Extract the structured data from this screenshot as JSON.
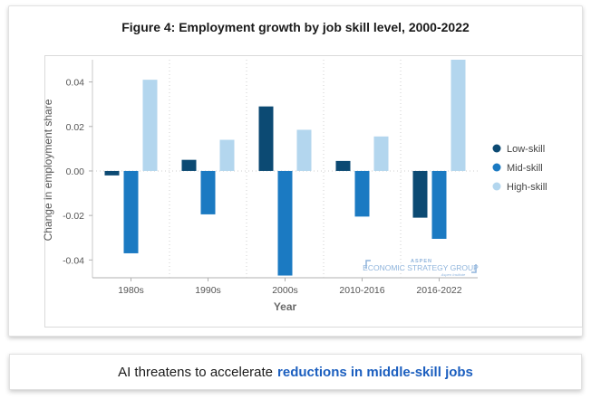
{
  "chart_data": {
    "type": "bar",
    "title": "Figure 4: Employment growth by job skill level, 2000-2022",
    "xlabel": "Year",
    "ylabel": "Change in employment share",
    "categories": [
      "1980s",
      "1990s",
      "2000s",
      "2010-2016",
      "2016-2022"
    ],
    "series": [
      {
        "name": "Low-skill",
        "color": "#0c4a73",
        "values": [
          -0.002,
          0.005,
          0.029,
          0.0045,
          -0.021
        ]
      },
      {
        "name": "Mid-skill",
        "color": "#1b7ac2",
        "values": [
          -0.037,
          -0.0195,
          -0.047,
          -0.0205,
          -0.0305
        ]
      },
      {
        "name": "High-skill",
        "color": "#b3d6ee",
        "values": [
          0.041,
          0.014,
          0.0185,
          0.0155,
          0.05
        ]
      }
    ],
    "ylim": [
      -0.048,
      0.05
    ],
    "yticks": [
      0.04,
      0.02,
      0.0,
      -0.02,
      -0.04
    ],
    "ytick_labels": [
      "0.04",
      "0.02",
      "0.00",
      "-0.02",
      "-0.04"
    ],
    "legend_position": "right"
  },
  "watermark": {
    "line1": "ASPEN",
    "line2": "ECONOMIC STRATEGY GROUP",
    "line3": "Aspen Institute"
  },
  "banner": {
    "text_plain": "AI threatens to accelerate",
    "text_highlight": "reductions in middle-skill jobs"
  }
}
